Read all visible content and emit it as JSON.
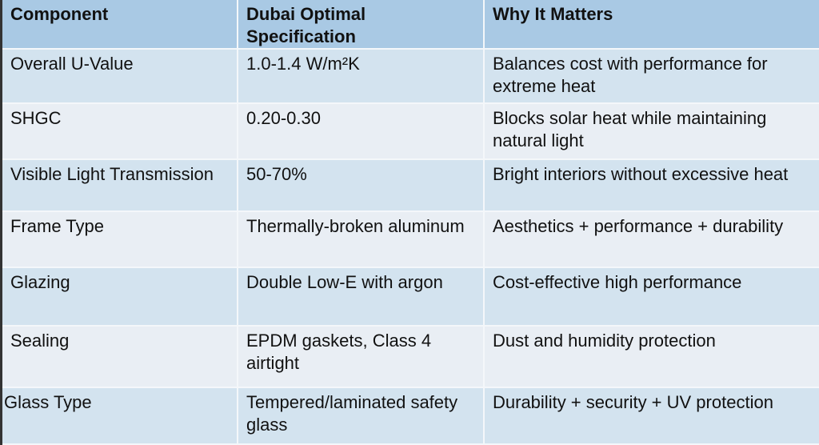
{
  "headers": [
    "Component",
    "Dubai Optimal Specification",
    "Why It Matters"
  ],
  "rows": [
    {
      "component": "Overall U-Value",
      "spec": "1.0-1.4 W/m²K",
      "why": "Balances cost with performance for extreme heat"
    },
    {
      "component": "SHGC",
      "spec": "0.20-0.30",
      "why": "Blocks solar heat while maintaining natural light"
    },
    {
      "component": "Visible Light Transmission",
      "spec": "50-70%",
      "why": "Bright interiors without excessive heat"
    },
    {
      "component": "Frame Type",
      "spec": "Thermally-broken aluminum",
      "why": "Aesthetics + performance + durability"
    },
    {
      "component": "Glazing",
      "spec": "Double Low-E with argon",
      "why": "Cost-effective high performance"
    },
    {
      "component": "Sealing",
      "spec": "EPDM gaskets, Class 4 airtight",
      "why": "Dust and humidity protection"
    },
    {
      "component": "Glass Type",
      "spec": "Tempered/laminated safety glass",
      "why": "Durability + security + UV protection"
    }
  ],
  "colors": {
    "header": "#a9c9e4",
    "row_odd": "#d3e3ef",
    "row_even": "#e9eef4"
  }
}
